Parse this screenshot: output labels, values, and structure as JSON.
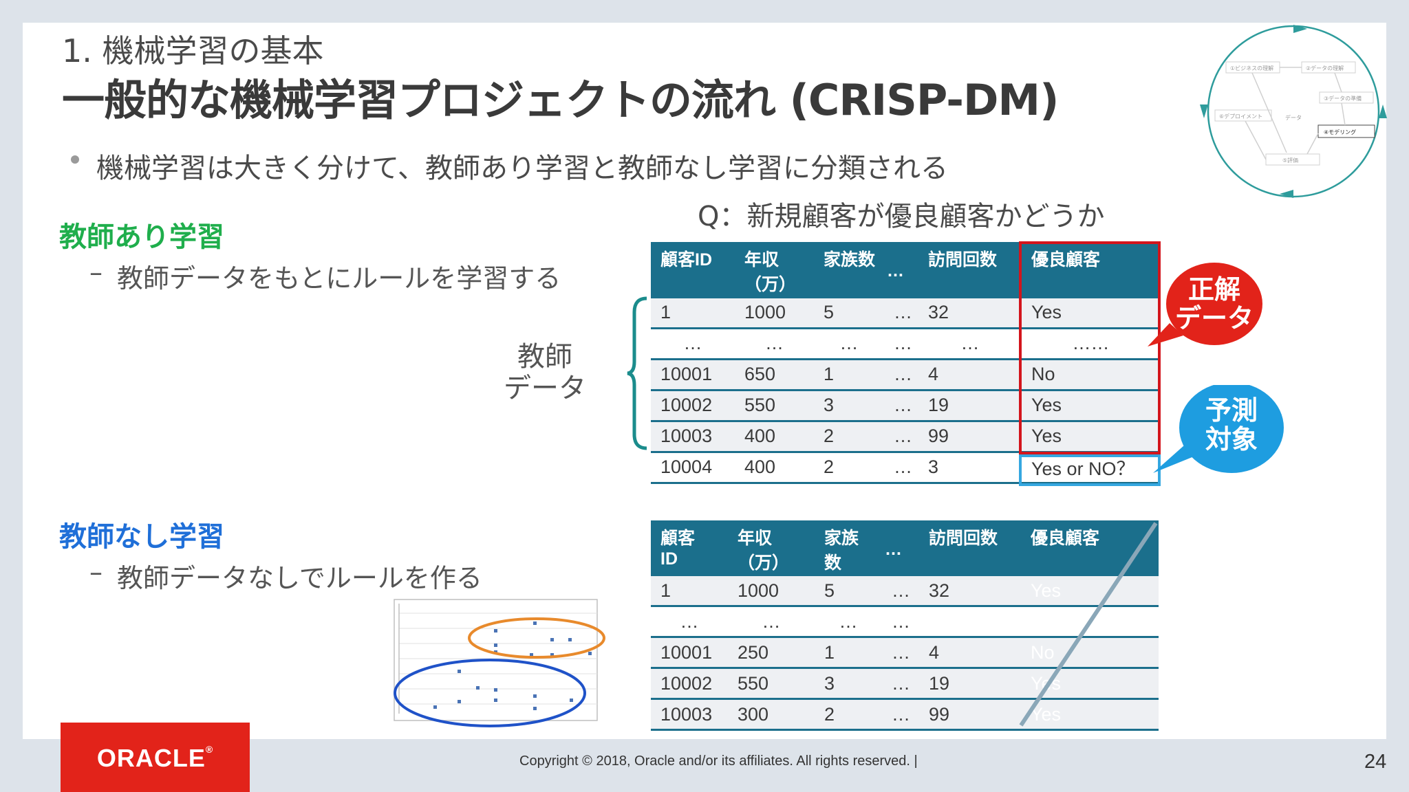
{
  "header": {
    "subtitle": "1. 機械学習の基本",
    "title": "一般的な機械学習プロジェクトの流れ (CRISP-DM)"
  },
  "bullet": "機械学習は大きく分けて、教師あり学習と教師なし学習に分類される",
  "question": "Q：新規顧客が優良顧客かどうか",
  "supervised": {
    "heading": "教師あり学習",
    "desc": "教師データをもとにルールを学習する",
    "dash": "–",
    "teacher_label_line1": "教師",
    "teacher_label_line2": "データ",
    "table": {
      "headers": [
        "顧客ID",
        "年収",
        "（万）",
        "家族数",
        "…",
        "訪問回数",
        "優良顧客"
      ],
      "rows": [
        [
          "1",
          "1000",
          "5",
          "…",
          "32",
          "Yes"
        ],
        [
          "…",
          "…",
          "…",
          "…",
          "…",
          "……"
        ],
        [
          "10001",
          "650",
          "1",
          "…",
          "4",
          "No"
        ],
        [
          "10002",
          "550",
          "3",
          "…",
          "19",
          "Yes"
        ],
        [
          "10003",
          "400",
          "2",
          "…",
          "99",
          "Yes"
        ],
        [
          "10004",
          "400",
          "2",
          "…",
          "3",
          "Yes or NO？"
        ]
      ]
    },
    "bubble_red_line1": "正解",
    "bubble_red_line2": "データ",
    "bubble_blue_line1": "予測",
    "bubble_blue_line2": "対象"
  },
  "unsupervised": {
    "heading": "教師なし学習",
    "desc": "教師データなしでルールを作る",
    "dash": "–",
    "table": {
      "headers": [
        "顧客",
        "ID",
        "年収",
        "（万）",
        "家族",
        "数",
        "…",
        "訪問回数",
        "優良顧客"
      ],
      "rows": [
        [
          "1",
          "1000",
          "5",
          "…",
          "32",
          "Yes"
        ],
        [
          "…",
          "…",
          "…",
          "…",
          "",
          "…"
        ],
        [
          "10001",
          "250",
          "1",
          "…",
          "4",
          "No"
        ],
        [
          "10002",
          "550",
          "3",
          "…",
          "19",
          "Yes"
        ],
        [
          "10003",
          "300",
          "2",
          "…",
          "99",
          "Yes"
        ]
      ]
    }
  },
  "crisp_cycle": {
    "nodes": [
      "①ビジネスの理解",
      "②データの理解",
      "③データの準備",
      "④モデリング",
      "⑤評価",
      "⑥デプロイメント"
    ],
    "center_label": "データ"
  },
  "footer": {
    "copyright": "Copyright © 2018, Oracle and/or its affiliates. All rights reserved.  |",
    "page": "24",
    "logo": "ORACLE",
    "logo_mark": "®"
  },
  "colors": {
    "accent_table": "#1b6f8c",
    "supervised": "#1fae4c",
    "unsupervised": "#1f6fd8",
    "red": "#d3151c",
    "blue": "#35a7e0",
    "oracle_red": "#e2231a"
  }
}
